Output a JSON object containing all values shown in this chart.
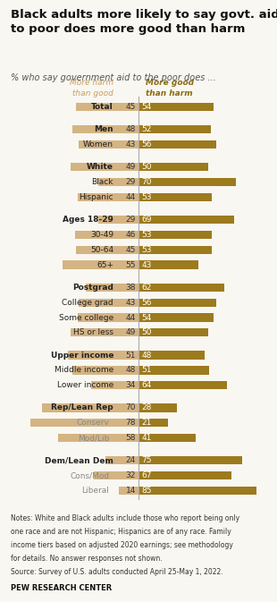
{
  "title": "Black adults more likely to say govt. aid\nto poor does more good than harm",
  "subtitle": "% who say government aid to the poor does ...",
  "col_header_left": "More harm\nthan good",
  "col_header_right": "More good\nthan harm",
  "categories": [
    "Total",
    "Men",
    "Women",
    "White",
    "Black",
    "Hispanic",
    "Ages 18-29",
    "30-49",
    "50-64",
    "65+",
    "Postgrad",
    "College grad",
    "Some college",
    "HS or less",
    "Upper income",
    "Middle income",
    "Lower income",
    "Rep/Lean Rep",
    "Conserv",
    "Mod/Lib",
    "Dem/Lean Dem",
    "Cons/Mod",
    "Liberal"
  ],
  "harm_values": [
    45,
    48,
    43,
    49,
    29,
    44,
    29,
    46,
    45,
    55,
    38,
    43,
    44,
    49,
    51,
    48,
    34,
    70,
    78,
    58,
    24,
    32,
    14
  ],
  "good_values": [
    54,
    52,
    56,
    50,
    70,
    53,
    69,
    53,
    53,
    43,
    62,
    56,
    54,
    50,
    48,
    51,
    64,
    28,
    21,
    41,
    75,
    67,
    85
  ],
  "bold_rows": [
    0,
    1,
    3,
    6,
    10,
    14,
    17,
    20
  ],
  "gray_rows": [
    18,
    19,
    21,
    22
  ],
  "extra_indent_rows": [
    18,
    19,
    21,
    22
  ],
  "spacer_before": [
    1,
    3,
    6,
    10,
    14,
    17,
    20
  ],
  "color_harm": "#d4b483",
  "color_good": "#9c7a1e",
  "color_text_harm": "#c8a060",
  "color_text_good": "#8a6b10",
  "notes_line1": "Notes: White and Black adults include those who report being only",
  "notes_line2": "one race and are not Hispanic; Hispanics are of any race. Family",
  "notes_line3": "income tiers based on adjusted 2020 earnings; see methodology",
  "notes_line4": "for details. No answer responses not shown.",
  "notes_line5": "Source: Survey of U.S. adults conducted April 25-May 1, 2022.",
  "source_bold": "PEW RESEARCH CENTER",
  "background_color": "#f9f7f1"
}
